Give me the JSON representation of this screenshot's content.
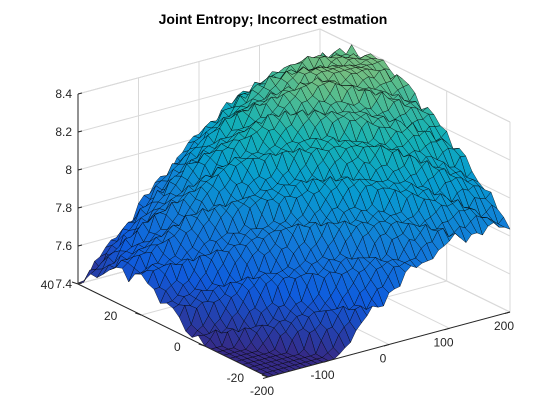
{
  "chart_data": {
    "type": "surface",
    "title": "Joint Entropy; Incorrect estmation",
    "xlabel": "",
    "ylabel": "",
    "zlabel": "",
    "x_ticks": [
      -200,
      -100,
      0,
      100,
      200
    ],
    "y_ticks": [
      -20,
      0,
      20,
      40
    ],
    "z_ticks": [
      7.4,
      7.6,
      7.8,
      8,
      8.2,
      8.4
    ],
    "x_tick_labels": [
      "-200",
      "-100",
      "0",
      "100",
      "200"
    ],
    "y_tick_labels": [
      "-20",
      "0",
      "20",
      "40"
    ],
    "z_tick_labels": [
      "7.4",
      "7.6",
      "7.8",
      "8",
      "8.2",
      "8.4"
    ],
    "xlim": [
      -200,
      200
    ],
    "ylim": [
      -20,
      40
    ],
    "zlim": [
      7.4,
      8.4
    ],
    "grid": true,
    "colormap": "parula",
    "grid_color": "#d9d9d9",
    "mesh_line_color": "#000000",
    "profile_along_x": {
      "x": [
        -200,
        -150,
        -100,
        -50,
        0,
        50,
        100,
        150,
        200
      ],
      "z": [
        7.4,
        7.55,
        7.72,
        7.88,
        8.02,
        8.13,
        8.2,
        8.22,
        8.2
      ]
    },
    "profile_along_y": {
      "y": [
        -20,
        -10,
        0,
        10,
        20,
        30,
        40
      ],
      "z_offset": [
        -0.35,
        -0.18,
        -0.02,
        0.1,
        0.2,
        0.16,
        0.0
      ]
    }
  }
}
